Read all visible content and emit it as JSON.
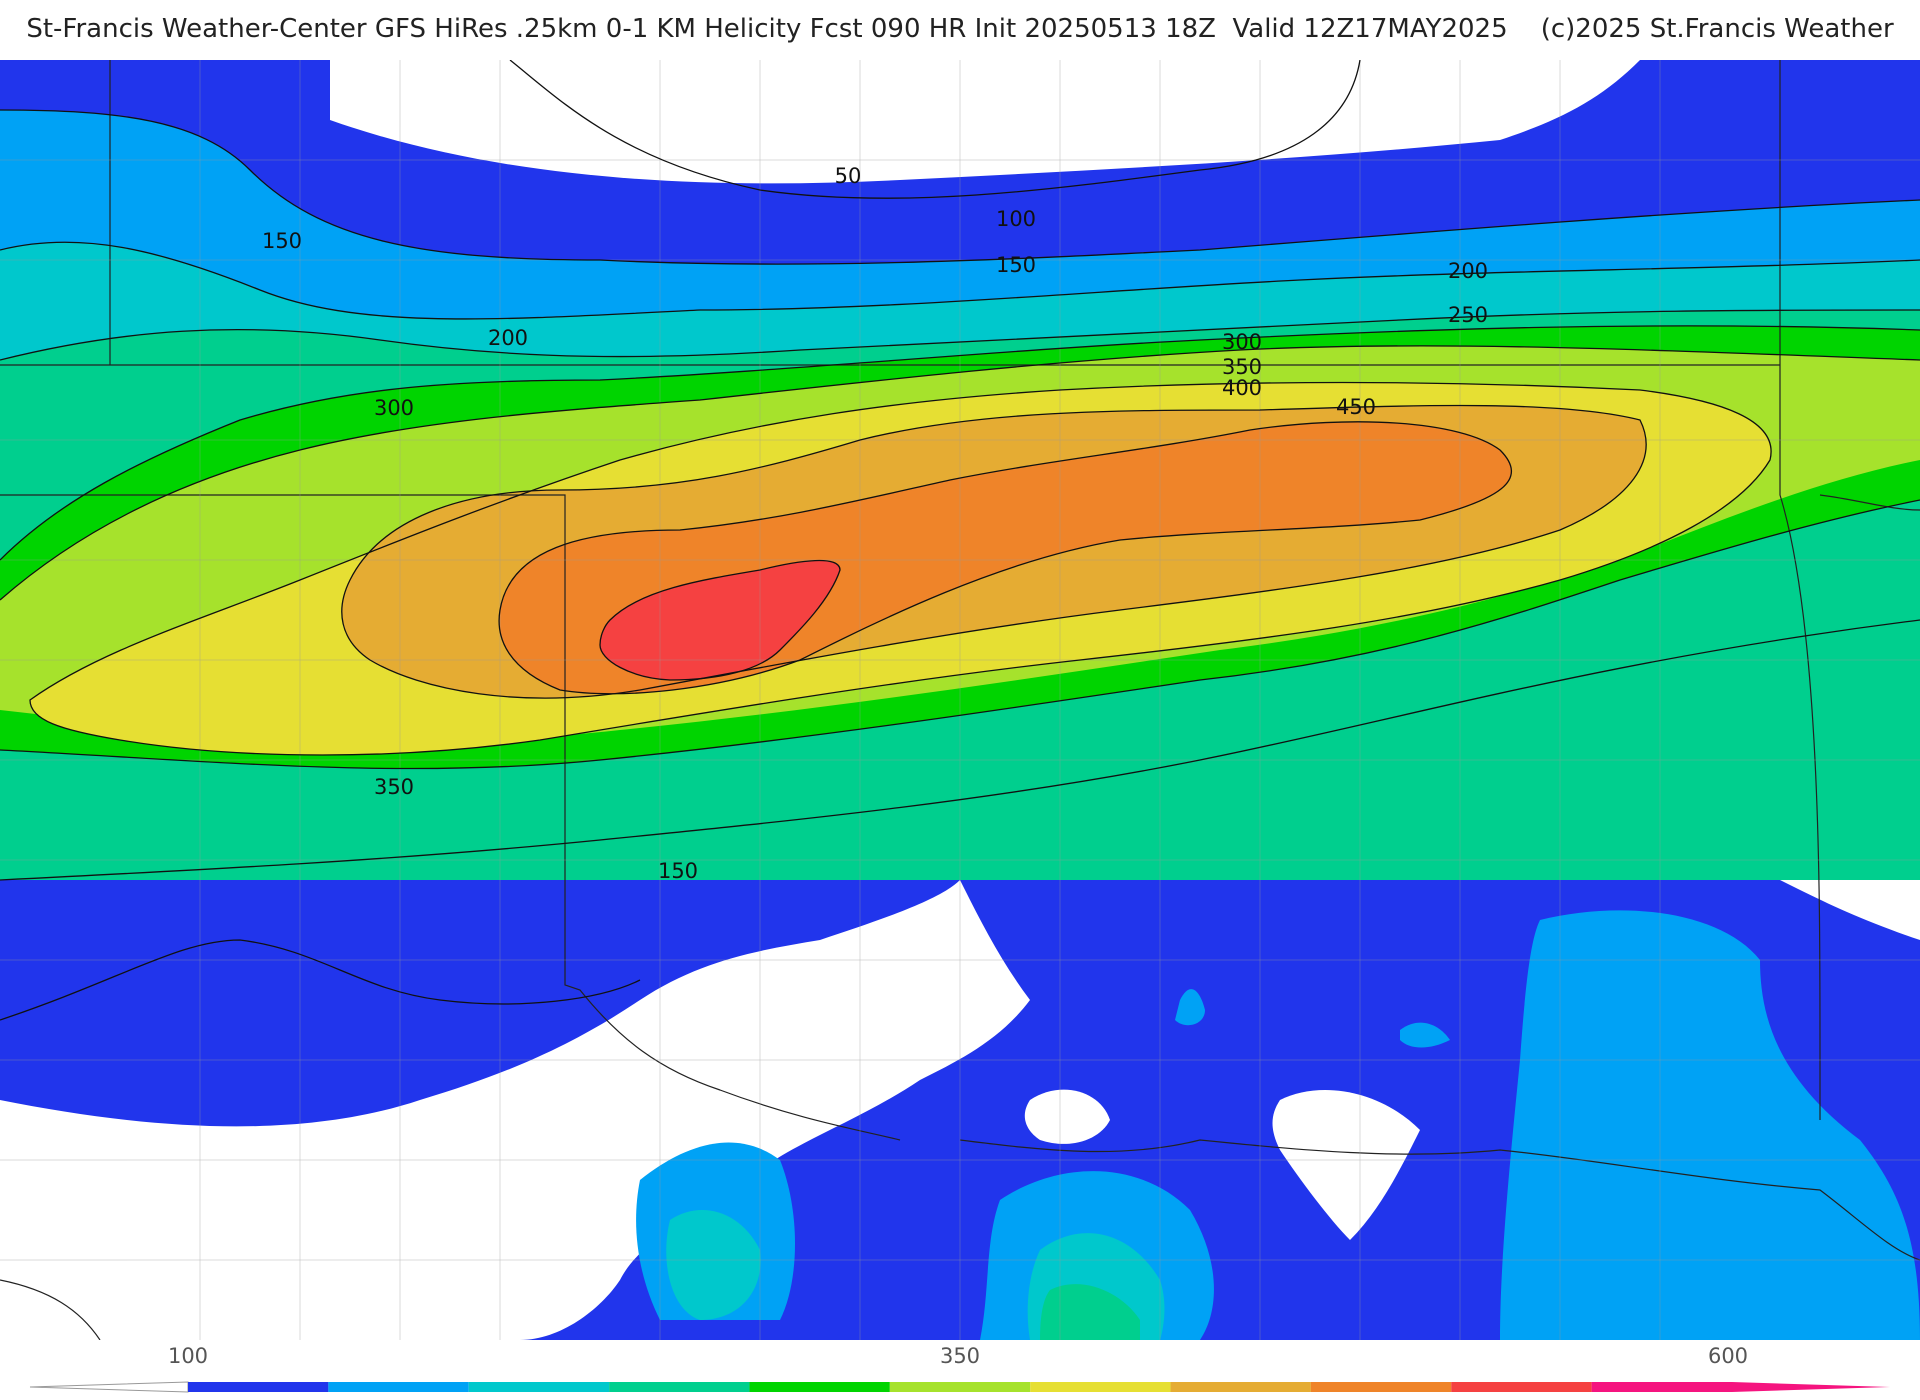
{
  "title": "St-Francis Weather-Center GFS HiRes .25km 0-1 KM Helicity Fcst 090 HR Init 20250513 18Z  Valid 12Z17MAY2025    (c)2025 St.Francis Weather",
  "colors": {
    "band_50_100": "#2135ec",
    "band_100_150": "#00a2f5",
    "band_150_200": "#00c8cc",
    "band_200_250": "#00cf8e",
    "band_250_300": "#00d400",
    "band_300_350": "#a6e22c",
    "band_350_400": "#e6df33",
    "band_400_450": "#e5ac33",
    "band_450_500": "#ef8429",
    "band_500_550": "#f54141",
    "band_550_600": "#f5147f",
    "background_below_50": "#ffffff"
  },
  "contour_labels": [
    {
      "text": "50"
    },
    {
      "text": "100"
    },
    {
      "text": "150"
    },
    {
      "text": "150"
    },
    {
      "text": "200"
    },
    {
      "text": "200"
    },
    {
      "text": "250"
    },
    {
      "text": "300"
    },
    {
      "text": "350"
    },
    {
      "text": "400"
    },
    {
      "text": "450"
    },
    {
      "text": "300"
    },
    {
      "text": "350"
    },
    {
      "text": "150"
    }
  ],
  "colorbar": {
    "min_label": "100",
    "mid_label": "350",
    "max_label": "600",
    "colors": [
      "#2135ec",
      "#00a2f5",
      "#00c8cc",
      "#00cf8e",
      "#00d400",
      "#a6e22c",
      "#e6df33",
      "#e5ac33",
      "#ef8429",
      "#f54141",
      "#f5147f"
    ]
  }
}
